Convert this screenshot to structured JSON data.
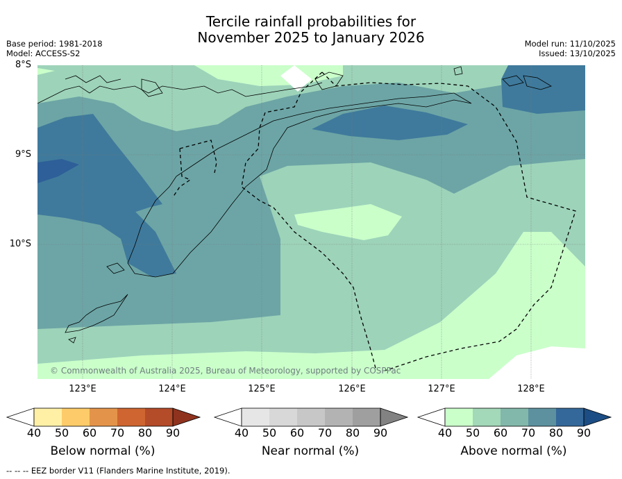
{
  "title_line1": "Tercile rainfall probabilities for",
  "title_line2": "November 2025 to January 2026",
  "base_period": "Base period: 1981-2018",
  "model": "Model: ACCESS-S2",
  "model_run": "Model run: 11/10/2025",
  "issued": "Issued: 13/10/2025",
  "lat_labels": [
    "8°S",
    "9°S",
    "10°S"
  ],
  "lon_labels": [
    "123°E",
    "124°E",
    "125°E",
    "126°E",
    "127°E",
    "128°E"
  ],
  "copyright": "© Commonwealth of Australia 2025, Bureau of Meteorology, supported by COSPPac",
  "colorbars": [
    {
      "label": "Below normal (%)",
      "ticks": [
        "40",
        "50",
        "60",
        "70",
        "80",
        "90"
      ],
      "colors": [
        "#fff0a6",
        "#fdcb69",
        "#e4944a",
        "#cf6530",
        "#b44b29",
        "#8f331f"
      ]
    },
    {
      "label": "Near normal (%)",
      "ticks": [
        "40",
        "50",
        "60",
        "70",
        "80",
        "90"
      ],
      "colors": [
        "#e6e6e6",
        "#d8d8d8",
        "#c7c7c7",
        "#b3b3b3",
        "#9f9f9f",
        "#828282"
      ]
    },
    {
      "label": "Above normal (%)",
      "ticks": [
        "40",
        "50",
        "60",
        "70",
        "80",
        "90"
      ],
      "colors": [
        "#caffca",
        "#a3d8b8",
        "#82b8ab",
        "#5d919f",
        "#34689a",
        "#1c4d84"
      ]
    }
  ],
  "legend_note": "--  --  -- EEZ border V11 (Flanders Marine Institute, 2019).",
  "colors": {
    "above_40_50": "#caffca",
    "above_50_60": "#9dd3b9",
    "above_60_70": "#6da5a6",
    "above_70_80": "#3f7a9c",
    "above_80_90": "#2e5f98"
  }
}
